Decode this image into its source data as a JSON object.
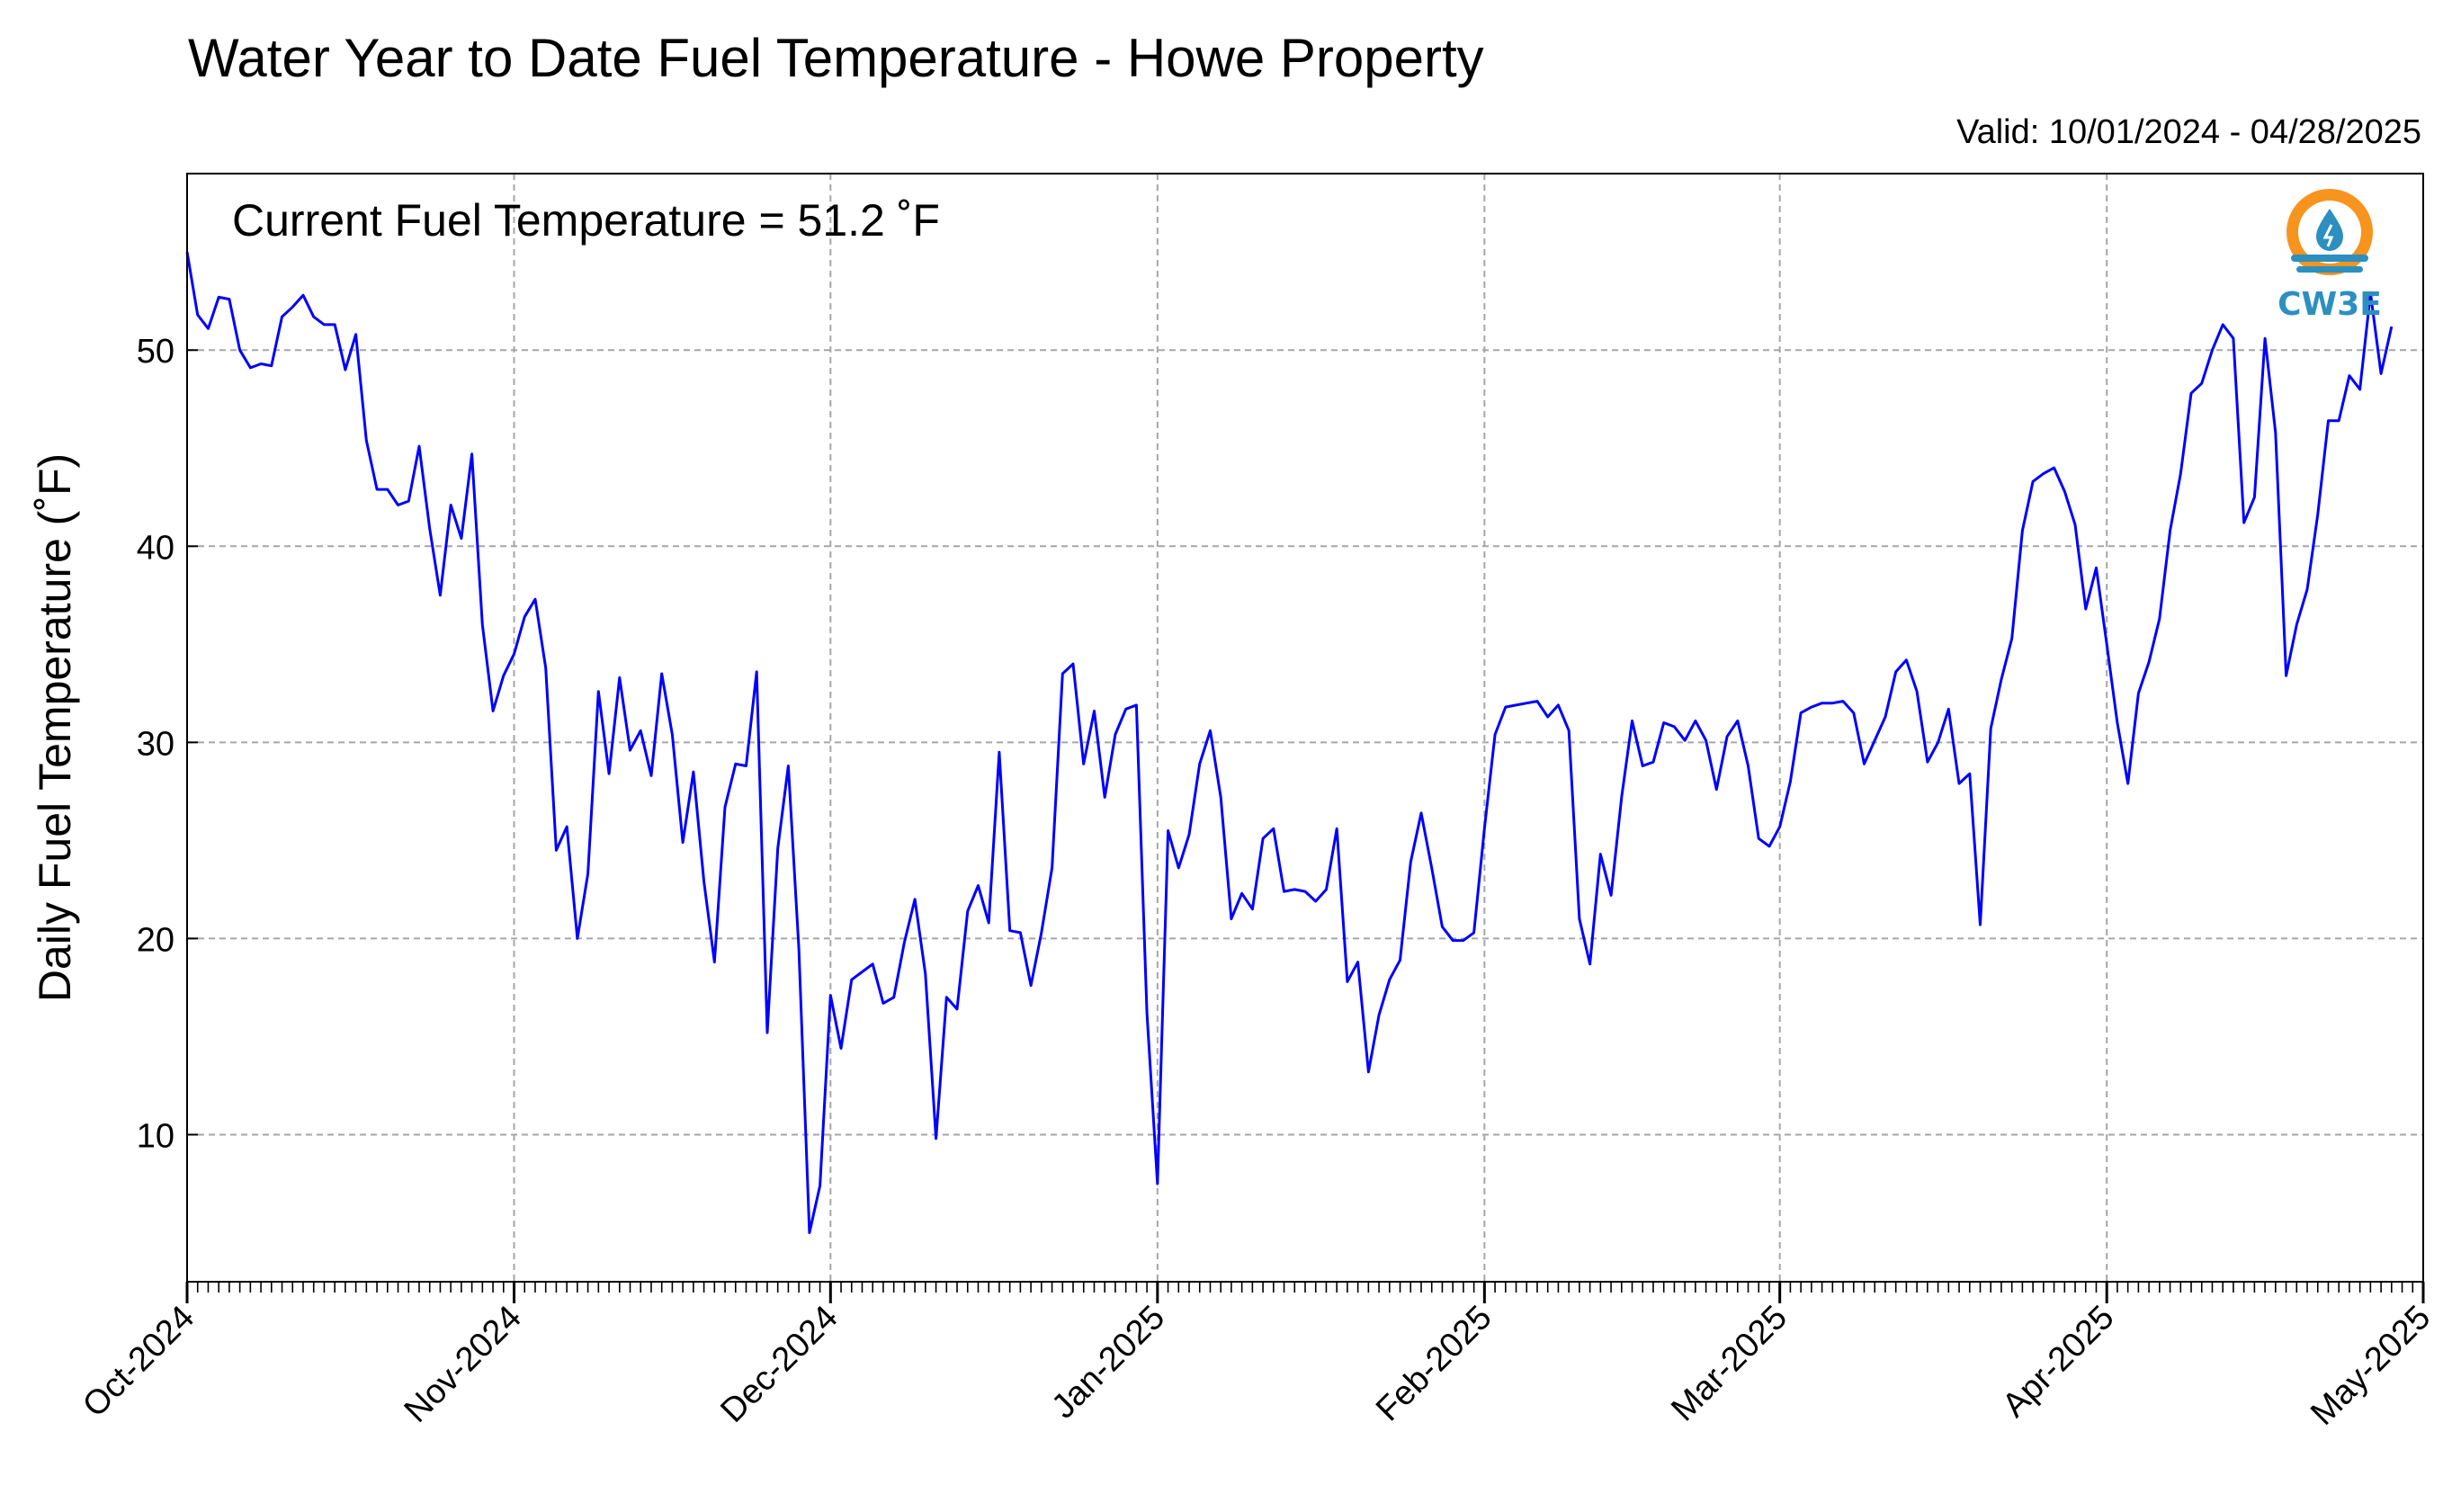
{
  "chart_data": {
    "type": "line",
    "title": "Water Year to Date Fuel Temperature - Howe Property",
    "valid_label": "Valid: 10/01/2024 - 04/28/2025",
    "annotation": "Current Fuel Temperature = 51.2  ˚F",
    "ylabel": "Daily Fuel Temperature (˚F)",
    "xlabel": "",
    "ylim": [
      2.5,
      59
    ],
    "xlim": [
      "2024-10-01",
      "2025-05-01"
    ],
    "grid": true,
    "y_ticks": [
      10,
      20,
      30,
      40,
      50
    ],
    "x_ticks": [
      {
        "date": "2024-10-01",
        "label": "Oct-2024"
      },
      {
        "date": "2024-11-01",
        "label": "Nov-2024"
      },
      {
        "date": "2024-12-01",
        "label": "Dec-2024"
      },
      {
        "date": "2025-01-01",
        "label": "Jan-2025"
      },
      {
        "date": "2025-02-01",
        "label": "Feb-2025"
      },
      {
        "date": "2025-03-01",
        "label": "Mar-2025"
      },
      {
        "date": "2025-04-01",
        "label": "Apr-2025"
      },
      {
        "date": "2025-05-01",
        "label": "May-2025"
      }
    ],
    "series": [
      {
        "color": "#0000ff",
        "start_date": "2024-10-01",
        "values": [
          55.0,
          51.8,
          51.1,
          52.7,
          52.6,
          50.0,
          49.1,
          49.3,
          49.2,
          51.7,
          52.2,
          52.8,
          51.7,
          51.3,
          51.3,
          49.0,
          50.8,
          45.4,
          42.9,
          42.9,
          42.1,
          42.3,
          45.1,
          40.9,
          37.5,
          42.1,
          40.4,
          44.7,
          36.0,
          31.6,
          33.4,
          34.5,
          36.4,
          37.3,
          33.8,
          24.5,
          25.7,
          20.0,
          23.3,
          32.6,
          28.4,
          33.3,
          29.6,
          30.6,
          28.3,
          33.5,
          30.4,
          24.9,
          28.5,
          22.9,
          18.8,
          26.7,
          28.9,
          28.8,
          33.6,
          15.2,
          24.6,
          28.8,
          19.5,
          5.0,
          7.4,
          17.1,
          14.4,
          17.9,
          18.3,
          18.7,
          16.7,
          17.0,
          19.8,
          22.0,
          18.2,
          9.8,
          17.0,
          16.4,
          21.4,
          22.7,
          20.8,
          29.5,
          20.4,
          20.3,
          17.6,
          20.3,
          23.6,
          33.5,
          34.0,
          28.9,
          31.6,
          27.2,
          30.4,
          31.7,
          31.9,
          16.2,
          7.5,
          25.5,
          23.6,
          25.3,
          28.9,
          30.6,
          27.2,
          21.0,
          22.3,
          21.5,
          25.1,
          25.6,
          22.4,
          22.5,
          22.4,
          21.9,
          22.5,
          25.6,
          17.8,
          18.8,
          13.2,
          16.1,
          17.9,
          18.9,
          23.9,
          26.4,
          23.6,
          20.6,
          19.9,
          19.9,
          20.3,
          25.6,
          30.4,
          31.8,
          31.9,
          32.0,
          32.1,
          31.3,
          31.9,
          30.6,
          21.0,
          18.7,
          24.3,
          22.2,
          27.2,
          31.1,
          28.8,
          29.0,
          31.0,
          30.8,
          30.1,
          31.1,
          30.1,
          27.6,
          30.3,
          31.1,
          28.8,
          25.1,
          24.7,
          25.7,
          28.0,
          31.5,
          31.8,
          32.0,
          32.0,
          32.1,
          31.5,
          28.9,
          30.1,
          31.3,
          33.6,
          34.2,
          32.6,
          29.0,
          30.0,
          31.7,
          27.9,
          28.4,
          20.7,
          30.7,
          33.2,
          35.3,
          40.8,
          43.3,
          43.7,
          44.0,
          42.8,
          41.1,
          36.8,
          38.9,
          35.0,
          31.0,
          27.9,
          32.5,
          34.1,
          36.3,
          40.8,
          43.7,
          47.8,
          48.3,
          50.0,
          51.3,
          50.6,
          41.2,
          42.5,
          50.6,
          45.8,
          33.4,
          36.0,
          37.8,
          41.6,
          46.4,
          46.4,
          48.7,
          48.0,
          52.9,
          48.8,
          51.2
        ]
      }
    ]
  },
  "logo": {
    "text": "CW3E",
    "orange": "#f7941d",
    "blue": "#2c8fc0",
    "icon": "water-drop-icon"
  },
  "colors": {
    "line": "#0000ff",
    "grid": "#a6a6a6",
    "axis": "#000000"
  }
}
